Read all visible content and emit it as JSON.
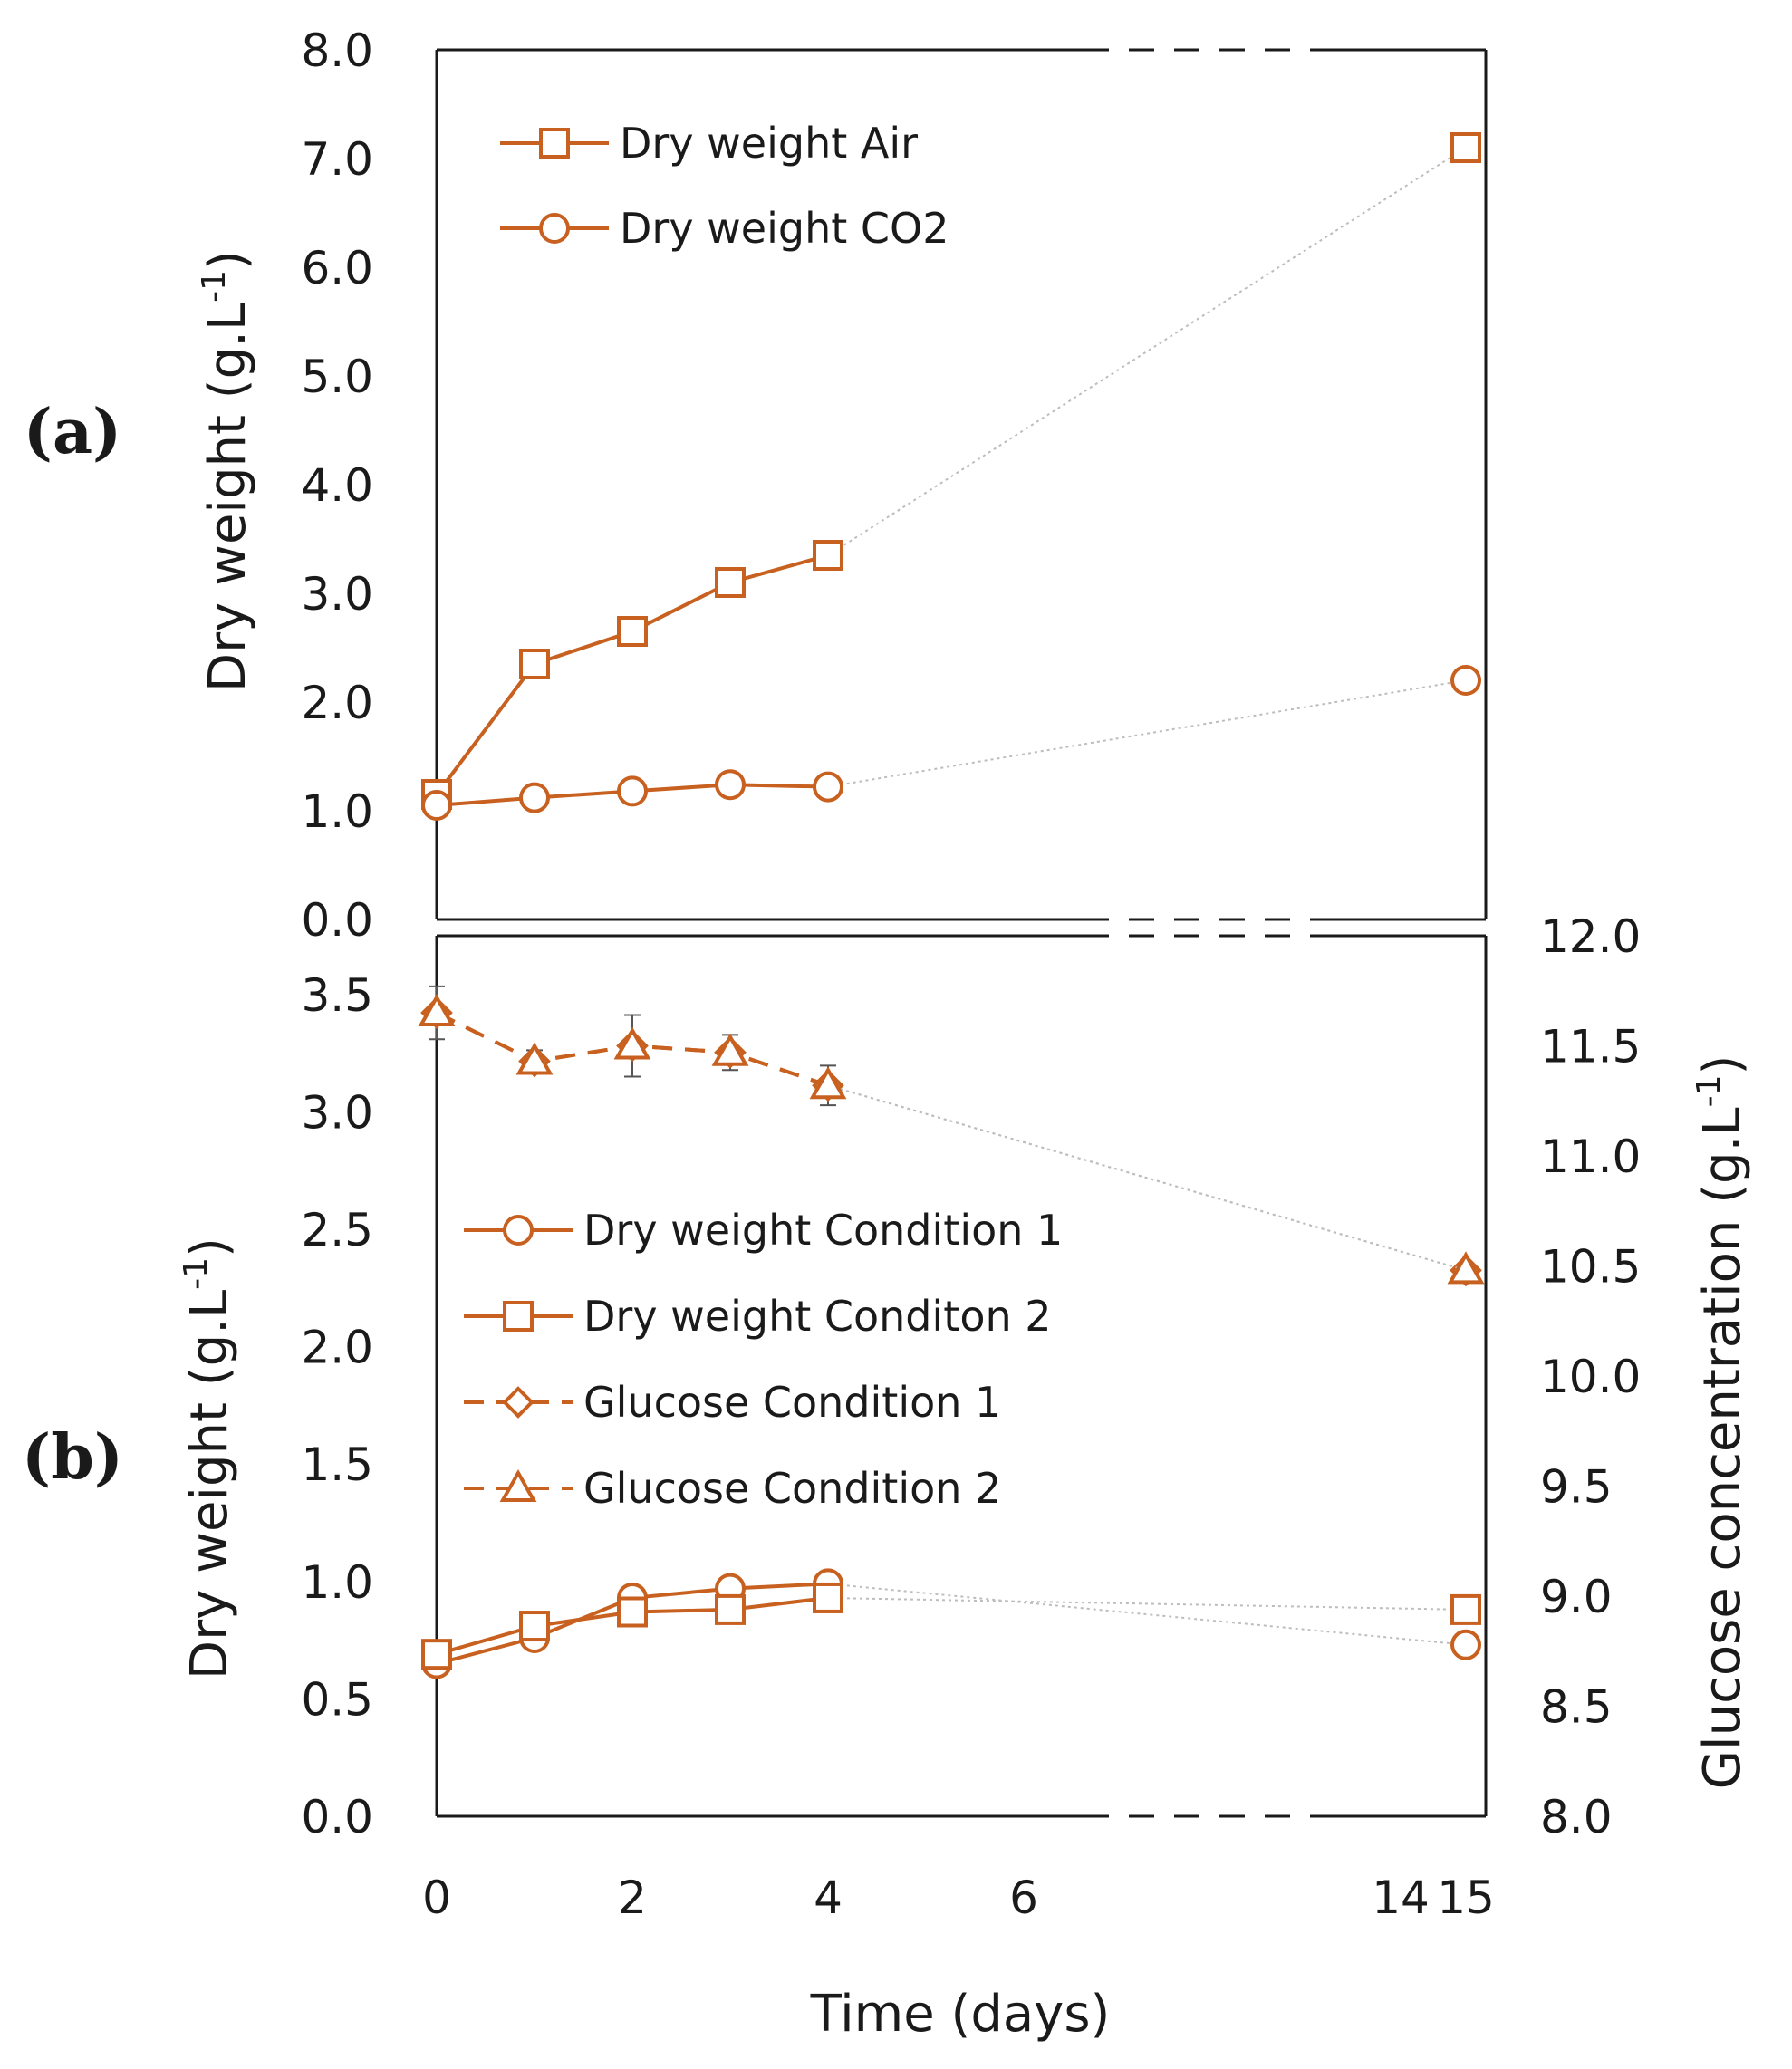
{
  "chart_data": [
    {
      "type": "line",
      "panel_label": "(a)",
      "ylabel": "Dry weight (g.L",
      "ylabel_sup": "-1",
      "ylabel_close": ")",
      "ylim": [
        0,
        8
      ],
      "yticks": [
        "0.0",
        "1.0",
        "2.0",
        "3.0",
        "4.0",
        "5.0",
        "6.0",
        "7.0",
        "8.0"
      ],
      "axis_break": "days 6–14 (broken axis)",
      "legend_position": "top-left",
      "series": [
        {
          "name": "Dry weight Air",
          "marker": "square",
          "dash": "solid",
          "x": [
            0,
            1,
            2,
            3,
            4,
            15
          ],
          "values": [
            1.15,
            2.35,
            2.65,
            3.1,
            3.35,
            7.1
          ]
        },
        {
          "name": "Dry weight CO2",
          "marker": "circle",
          "dash": "solid",
          "x": [
            0,
            1,
            2,
            3,
            4,
            15
          ],
          "values": [
            1.05,
            1.12,
            1.18,
            1.24,
            1.22,
            2.2
          ]
        }
      ]
    },
    {
      "type": "line",
      "panel_label": "(b)",
      "ylabel": "Dry weight (g.L",
      "ylabel_sup": "-1",
      "ylabel_close": ")",
      "ylim": [
        0,
        3.75
      ],
      "yticks": [
        "0.0",
        "0.5",
        "1.0",
        "1.5",
        "2.0",
        "2.5",
        "3.0",
        "3.5"
      ],
      "y2label": "Glucose concentration (g.L",
      "y2label_sup": "-1",
      "y2label_close": ")",
      "y2lim": [
        8,
        12
      ],
      "y2ticks": [
        "8.0",
        "8.5",
        "9.0",
        "9.5",
        "10.0",
        "10.5",
        "11.0",
        "11.5",
        "12.0"
      ],
      "xlabel": "Time (days)",
      "xticks": [
        "0",
        "2",
        "4",
        "6",
        "14",
        "15"
      ],
      "legend_position": "center-left",
      "series": [
        {
          "name": "Dry weight Condition 1",
          "marker": "circle",
          "dash": "solid",
          "axis": "left",
          "x": [
            0,
            1,
            2,
            3,
            4,
            15
          ],
          "values": [
            0.65,
            0.76,
            0.93,
            0.97,
            0.99,
            0.73
          ]
        },
        {
          "name": "Dry weight Conditon 2",
          "marker": "square",
          "dash": "solid",
          "axis": "left",
          "x": [
            0,
            1,
            2,
            3,
            4,
            15
          ],
          "values": [
            0.69,
            0.81,
            0.87,
            0.88,
            0.93,
            0.88
          ]
        },
        {
          "name": "Glucose Condition 1",
          "marker": "diamond",
          "dash": "dashed",
          "axis": "right",
          "x": [
            0,
            1,
            2,
            3,
            4,
            15
          ],
          "values": [
            11.65,
            11.43,
            11.5,
            11.47,
            11.32,
            10.48
          ]
        },
        {
          "name": "Glucose Condition 2",
          "marker": "triangle",
          "dash": "dashed",
          "axis": "right",
          "x": [
            0,
            1,
            2,
            3,
            4,
            15
          ],
          "values": [
            11.65,
            11.43,
            11.5,
            11.47,
            11.32,
            10.48
          ]
        }
      ]
    }
  ],
  "colors": {
    "series": "#c8601f",
    "axis": "#1a1a1a",
    "connector": "#bdbdbd"
  }
}
